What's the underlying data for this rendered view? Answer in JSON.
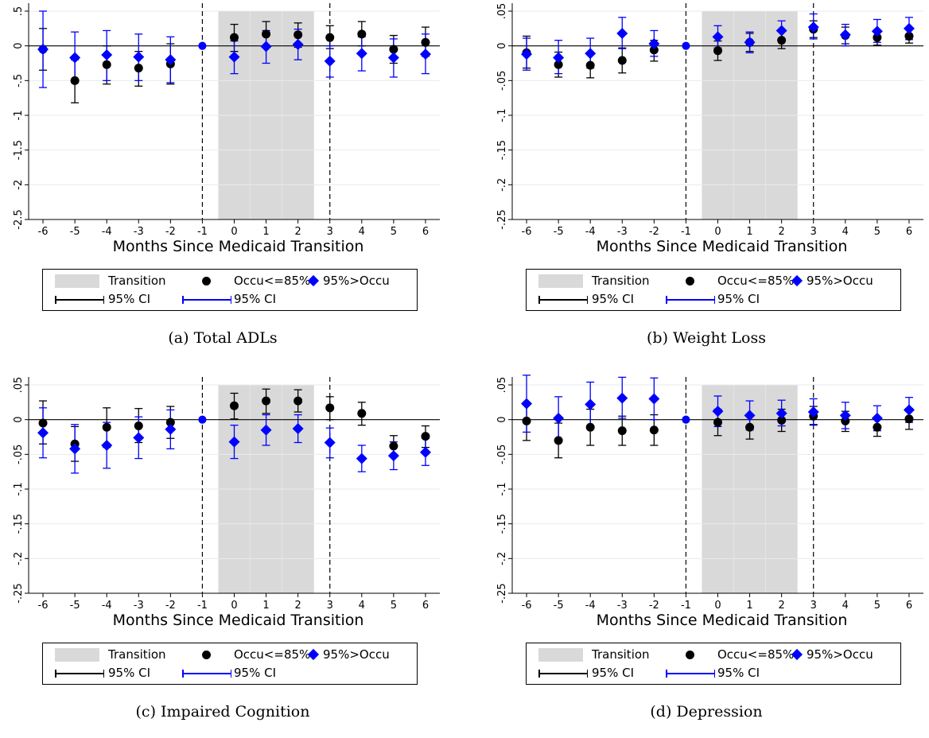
{
  "legend": {
    "transition": "Transition",
    "series_a": "Occu<=85%",
    "series_b": "95%>Occu",
    "ci_a": "95% CI",
    "ci_b": "95% CI"
  },
  "colors": {
    "series_a": "#000000",
    "series_b": "#0000ff",
    "shade": "#d9d9d9",
    "grid": "#e6ebee"
  },
  "chart_data": [
    {
      "type": "scatter",
      "caption": "(a) Total ADLs",
      "xlabel": "Months Since Medicaid Transition",
      "x": [
        -6,
        -5,
        -4,
        -3,
        -2,
        -1,
        0,
        1,
        2,
        3,
        4,
        5,
        6
      ],
      "ylim": [
        -2.5,
        0.5
      ],
      "yticks": [
        0.5,
        0,
        -0.5,
        -1,
        -1.5,
        -2,
        -2.5
      ],
      "ytick_labels": [
        ".5",
        "0",
        "-.5",
        "-1",
        "-1.5",
        "-2",
        "-2.5"
      ],
      "vlines": [
        -1,
        3
      ],
      "shade": [
        -0.5,
        2.5
      ],
      "series": [
        {
          "name": "Occu<=85%",
          "values": [
            -0.05,
            -0.5,
            -0.27,
            -0.32,
            -0.26,
            0,
            0.12,
            0.17,
            0.16,
            0.12,
            0.17,
            -0.05,
            0.05
          ],
          "ci_low": [
            -0.35,
            -0.82,
            -0.55,
            -0.58,
            -0.55,
            0,
            -0.08,
            0,
            -0.02,
            -0.04,
            0,
            -0.25,
            -0.15
          ],
          "ci_high": [
            0.25,
            -0.2,
            0,
            -0.08,
            0.03,
            0,
            0.31,
            0.35,
            0.33,
            0.29,
            0.35,
            0.15,
            0.27
          ]
        },
        {
          "name": "95%>Occu",
          "values": [
            -0.05,
            -0.17,
            -0.13,
            -0.16,
            -0.2,
            0,
            -0.16,
            -0.01,
            0.02,
            -0.22,
            -0.11,
            -0.17,
            -0.12
          ],
          "ci_low": [
            -0.6,
            -0.53,
            -0.5,
            -0.5,
            -0.53,
            0,
            -0.4,
            -0.25,
            -0.2,
            -0.45,
            -0.36,
            -0.45,
            -0.4
          ],
          "ci_high": [
            0.5,
            0.2,
            0.22,
            0.17,
            0.13,
            0,
            0.07,
            0.22,
            0.24,
            0,
            0.13,
            0.1,
            0.17
          ]
        }
      ]
    },
    {
      "type": "scatter",
      "caption": "(b) Weight Loss",
      "xlabel": "Months Since Medicaid Transition",
      "x": [
        -6,
        -5,
        -4,
        -3,
        -2,
        -1,
        0,
        1,
        2,
        3,
        4,
        5,
        6
      ],
      "ylim": [
        -0.25,
        0.05
      ],
      "yticks": [
        0.05,
        0,
        -0.05,
        -0.1,
        -0.15,
        -0.2,
        -0.25
      ],
      "ytick_labels": [
        ".05",
        "0",
        "-.05",
        "-.1",
        "-.15",
        "-.2",
        "-.25"
      ],
      "vlines": [
        -1,
        3
      ],
      "shade": [
        -0.5,
        2.5
      ],
      "series": [
        {
          "name": "Occu<=85%",
          "values": [
            -0.01,
            -0.027,
            -0.028,
            -0.021,
            -0.006,
            0,
            -0.007,
            0.005,
            0.008,
            0.024,
            0.015,
            0.012,
            0.014
          ],
          "ci_low": [
            -0.032,
            -0.045,
            -0.046,
            -0.039,
            -0.022,
            0,
            -0.021,
            -0.008,
            -0.004,
            0.012,
            0.003,
            0.001,
            0.004
          ],
          "ci_high": [
            0.014,
            -0.009,
            -0.01,
            -0.003,
            0.008,
            0,
            0.007,
            0.018,
            0.021,
            0.036,
            0.027,
            0.023,
            0.024
          ]
        },
        {
          "name": "95%>Occu",
          "values": [
            -0.012,
            -0.017,
            -0.011,
            0.018,
            0.003,
            0,
            0.013,
            0.005,
            0.022,
            0.027,
            0.016,
            0.021,
            0.025
          ],
          "ci_low": [
            -0.035,
            -0.04,
            -0.032,
            -0.004,
            -0.015,
            0,
            -0.003,
            -0.01,
            0.008,
            0.01,
            0,
            0.005,
            0.009
          ],
          "ci_high": [
            0.011,
            0.008,
            0.011,
            0.041,
            0.022,
            0,
            0.029,
            0.02,
            0.036,
            0.046,
            0.031,
            0.038,
            0.041
          ]
        }
      ]
    },
    {
      "type": "scatter",
      "caption": "(c) Impaired Cognition",
      "xlabel": "Months Since Medicaid Transition",
      "x": [
        -6,
        -5,
        -4,
        -3,
        -2,
        -1,
        0,
        1,
        2,
        3,
        4,
        5,
        6
      ],
      "ylim": [
        -0.25,
        0.05
      ],
      "yticks": [
        0.05,
        0,
        -0.05,
        -0.1,
        -0.15,
        -0.2,
        -0.25
      ],
      "ytick_labels": [
        ".05",
        "0",
        "-.05",
        "-.1",
        "-.15",
        "-.2",
        "-.25"
      ],
      "vlines": [
        -1,
        3
      ],
      "shade": [
        -0.5,
        2.5
      ],
      "series": [
        {
          "name": "Occu<=85%",
          "values": [
            -0.005,
            -0.035,
            -0.011,
            -0.009,
            -0.004,
            0,
            0.02,
            0.027,
            0.027,
            0.017,
            0.009,
            -0.038,
            -0.024
          ],
          "ci_low": [
            -0.035,
            -0.06,
            -0.04,
            -0.033,
            -0.027,
            0,
            0.001,
            0.009,
            0.011,
            0,
            -0.008,
            -0.05,
            -0.04
          ],
          "ci_high": [
            0.027,
            -0.01,
            0.017,
            0.016,
            0.019,
            0,
            0.038,
            0.044,
            0.043,
            0.033,
            0.025,
            -0.023,
            -0.009
          ]
        },
        {
          "name": "95%>Occu",
          "values": [
            -0.019,
            -0.042,
            -0.037,
            -0.026,
            -0.014,
            0,
            -0.032,
            -0.015,
            -0.013,
            -0.033,
            -0.056,
            -0.052,
            -0.047
          ],
          "ci_low": [
            -0.055,
            -0.077,
            -0.07,
            -0.056,
            -0.042,
            0,
            -0.056,
            -0.037,
            -0.033,
            -0.055,
            -0.075,
            -0.072,
            -0.066
          ],
          "ci_high": [
            0.017,
            -0.007,
            -0.004,
            0.004,
            0.014,
            0,
            -0.008,
            0.007,
            0.007,
            -0.012,
            -0.037,
            -0.032,
            -0.027
          ]
        }
      ]
    },
    {
      "type": "scatter",
      "caption": "(d) Depression",
      "xlabel": "Months Since Medicaid Transition",
      "x": [
        -6,
        -5,
        -4,
        -3,
        -2,
        -1,
        0,
        1,
        2,
        3,
        4,
        5,
        6
      ],
      "ylim": [
        -0.25,
        0.05
      ],
      "yticks": [
        0.05,
        0,
        -0.05,
        -0.1,
        -0.15,
        -0.2,
        -0.25
      ],
      "ytick_labels": [
        ".05",
        "0",
        "-.05",
        "-.1",
        "-.15",
        "-.2",
        "-.25"
      ],
      "vlines": [
        -1,
        3
      ],
      "shade": [
        -0.5,
        2.5
      ],
      "series": [
        {
          "name": "Occu<=85%",
          "values": [
            -0.002,
            -0.03,
            -0.011,
            -0.016,
            -0.015,
            0,
            -0.004,
            -0.011,
            -0.001,
            0.005,
            -0.002,
            -0.011,
            0.001
          ],
          "ci_low": [
            -0.03,
            -0.055,
            -0.037,
            -0.037,
            -0.037,
            0,
            -0.023,
            -0.028,
            -0.017,
            -0.007,
            -0.017,
            -0.024,
            -0.014
          ],
          "ci_high": [
            0.025,
            -0.005,
            0.015,
            0.005,
            0.007,
            0,
            0.015,
            0.006,
            0.015,
            0.019,
            0.012,
            0.002,
            0.016
          ]
        },
        {
          "name": "95%>Occu",
          "values": [
            0.023,
            0.002,
            0.022,
            0.031,
            0.03,
            0,
            0.012,
            0.006,
            0.009,
            0.011,
            0.006,
            0.002,
            0.014
          ],
          "ci_low": [
            -0.018,
            -0.03,
            -0.01,
            0.002,
            0,
            0,
            -0.01,
            -0.015,
            -0.009,
            -0.008,
            -0.013,
            -0.016,
            -0.004
          ],
          "ci_high": [
            0.064,
            0.033,
            0.054,
            0.061,
            0.06,
            0,
            0.034,
            0.027,
            0.028,
            0.03,
            0.025,
            0.02,
            0.032
          ]
        }
      ]
    }
  ]
}
